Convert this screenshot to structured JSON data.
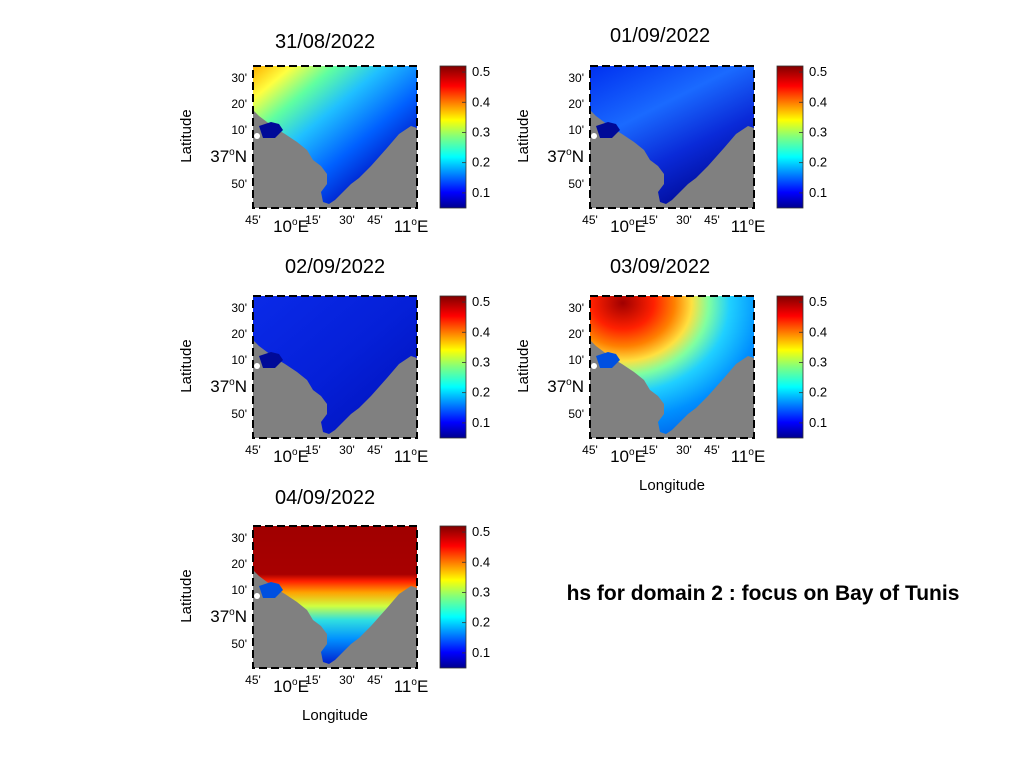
{
  "caption": "hs for domain 2 :  focus on Bay of Tunis",
  "colorbar": {
    "ticks": [
      "0.5",
      "0.4",
      "0.3",
      "0.2",
      "0.1"
    ],
    "colormap": "jet",
    "range": [
      0.05,
      0.52
    ]
  },
  "axes": {
    "ylabel": "Latitude",
    "xlabel": "Longitude",
    "lat_ticks": [
      "30'",
      "20'",
      "10'",
      "37",
      "50'"
    ],
    "lat_deg_suffix": "o",
    "lat_hemi": "N",
    "lon_ticks": [
      "45'",
      "10",
      "15'",
      "30'",
      "45'",
      "11"
    ],
    "lon_deg_suffix": "o",
    "lon_hemi": "E"
  },
  "panels": [
    {
      "date": "31/08/2022",
      "show_xlabel": false,
      "hs_open_sea": 0.5,
      "hs_gulf": 0.05,
      "pattern": "northwest-high"
    },
    {
      "date": "01/09/2022",
      "show_xlabel": false,
      "hs_open_sea": 0.15,
      "hs_gulf": 0.05,
      "pattern": "low"
    },
    {
      "date": "02/09/2022",
      "show_xlabel": false,
      "hs_open_sea": 0.1,
      "hs_gulf": 0.07,
      "pattern": "very-low"
    },
    {
      "date": "03/09/2022",
      "show_xlabel": true,
      "hs_open_sea": 0.52,
      "hs_gulf": 0.15,
      "pattern": "north-high"
    },
    {
      "date": "04/09/2022",
      "show_xlabel": true,
      "hs_open_sea": 0.52,
      "hs_gulf": 0.2,
      "pattern": "very-high"
    }
  ],
  "colors": {
    "land": "#808080",
    "background": "#ffffff"
  }
}
